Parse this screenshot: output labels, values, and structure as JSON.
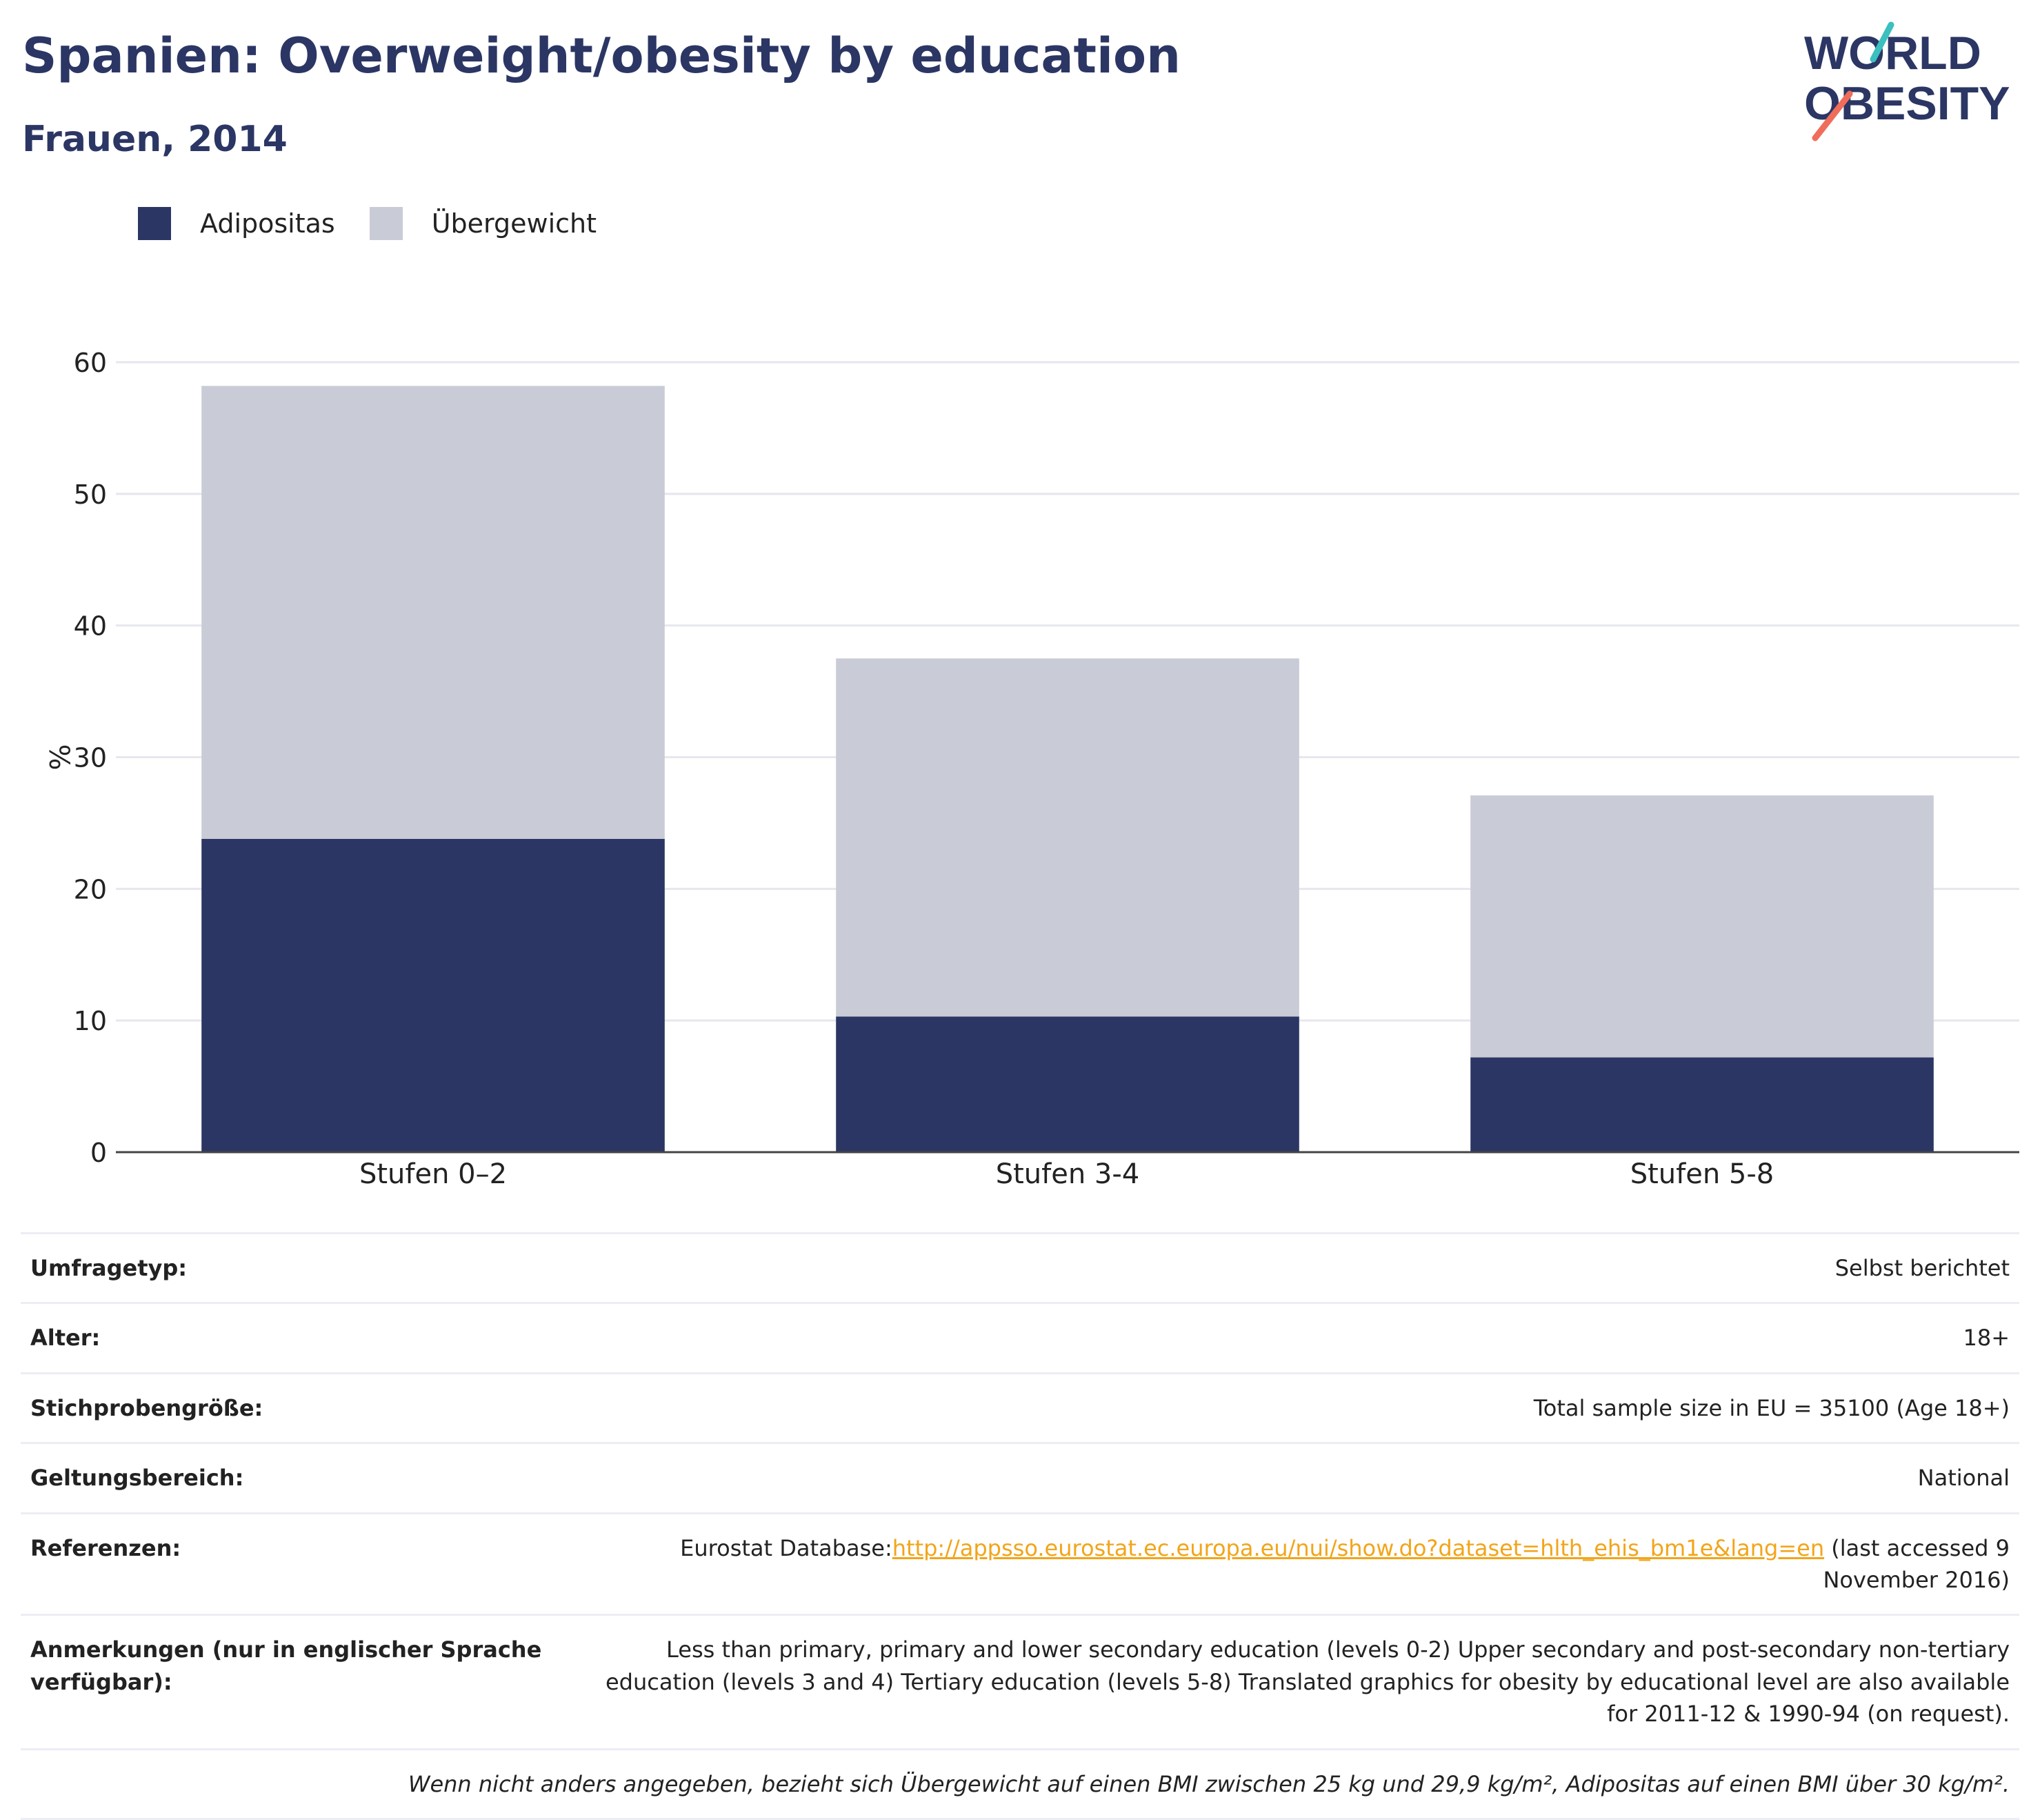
{
  "header": {
    "title": "Spanien: Overweight/obesity by education",
    "subtitle": "Frauen, 2014"
  },
  "logo": {
    "line1": "WORLD",
    "line2": "OBESITY"
  },
  "colors": {
    "obesity": "#2b3664",
    "overweight": "#c9cbd6",
    "title": "#2b3664",
    "link": "#f2a51a",
    "logo_teal": "#3bbfbf",
    "logo_coral": "#ef6d5a"
  },
  "legend": {
    "items": [
      {
        "label": "Adipositas",
        "color": "#2b3664"
      },
      {
        "label": "Übergewicht",
        "color": "#c9cbd6"
      }
    ],
    "placement": "top-left"
  },
  "chart_data": {
    "type": "bar",
    "stacked": true,
    "categories": [
      "Stufen 0–2",
      "Stufen 3-4",
      "Stufen 5-8"
    ],
    "series": [
      {
        "name": "Adipositas",
        "values": [
          23.8,
          10.3,
          7.2
        ]
      },
      {
        "name": "Übergewicht",
        "values": [
          34.4,
          27.2,
          19.9
        ]
      }
    ],
    "ylabel": "%",
    "ylim": [
      0,
      60
    ],
    "yticks": [
      0,
      10,
      20,
      30,
      40,
      50,
      60
    ],
    "grid": true
  },
  "info": {
    "rows": [
      {
        "label": "Umfragetyp:",
        "value": "Selbst berichtet"
      },
      {
        "label": "Alter:",
        "value": "18+"
      },
      {
        "label": "Stichprobengröße:",
        "value": "Total sample size in EU = 35100 (Age 18+)"
      },
      {
        "label": "Geltungsbereich:",
        "value": "National"
      }
    ],
    "references": {
      "label": "Referenzen:",
      "prefix": "Eurostat Database:",
      "link": "http://appsso.eurostat.ec.europa.eu/nui/show.do?dataset=hlth_ehis_bm1e&lang=en",
      "suffix": " (last accessed 9 November 2016)"
    },
    "notes": {
      "label": "Anmerkungen (nur in englischer Sprache verfügbar):",
      "value": "Less than primary, primary and lower secondary education (levels 0-2) Upper secondary and post-secondary non-tertiary education (levels 3 and 4) Tertiary education (levels 5-8) Translated graphics for obesity by educational level are also available for 2011-12 & 1990-94 (on request)."
    },
    "footnote": "Wenn nicht anders angegeben, bezieht sich Übergewicht auf einen BMI zwischen 25 kg und 29,9 kg/m², Adipositas auf einen BMI über 30 kg/m²."
  }
}
